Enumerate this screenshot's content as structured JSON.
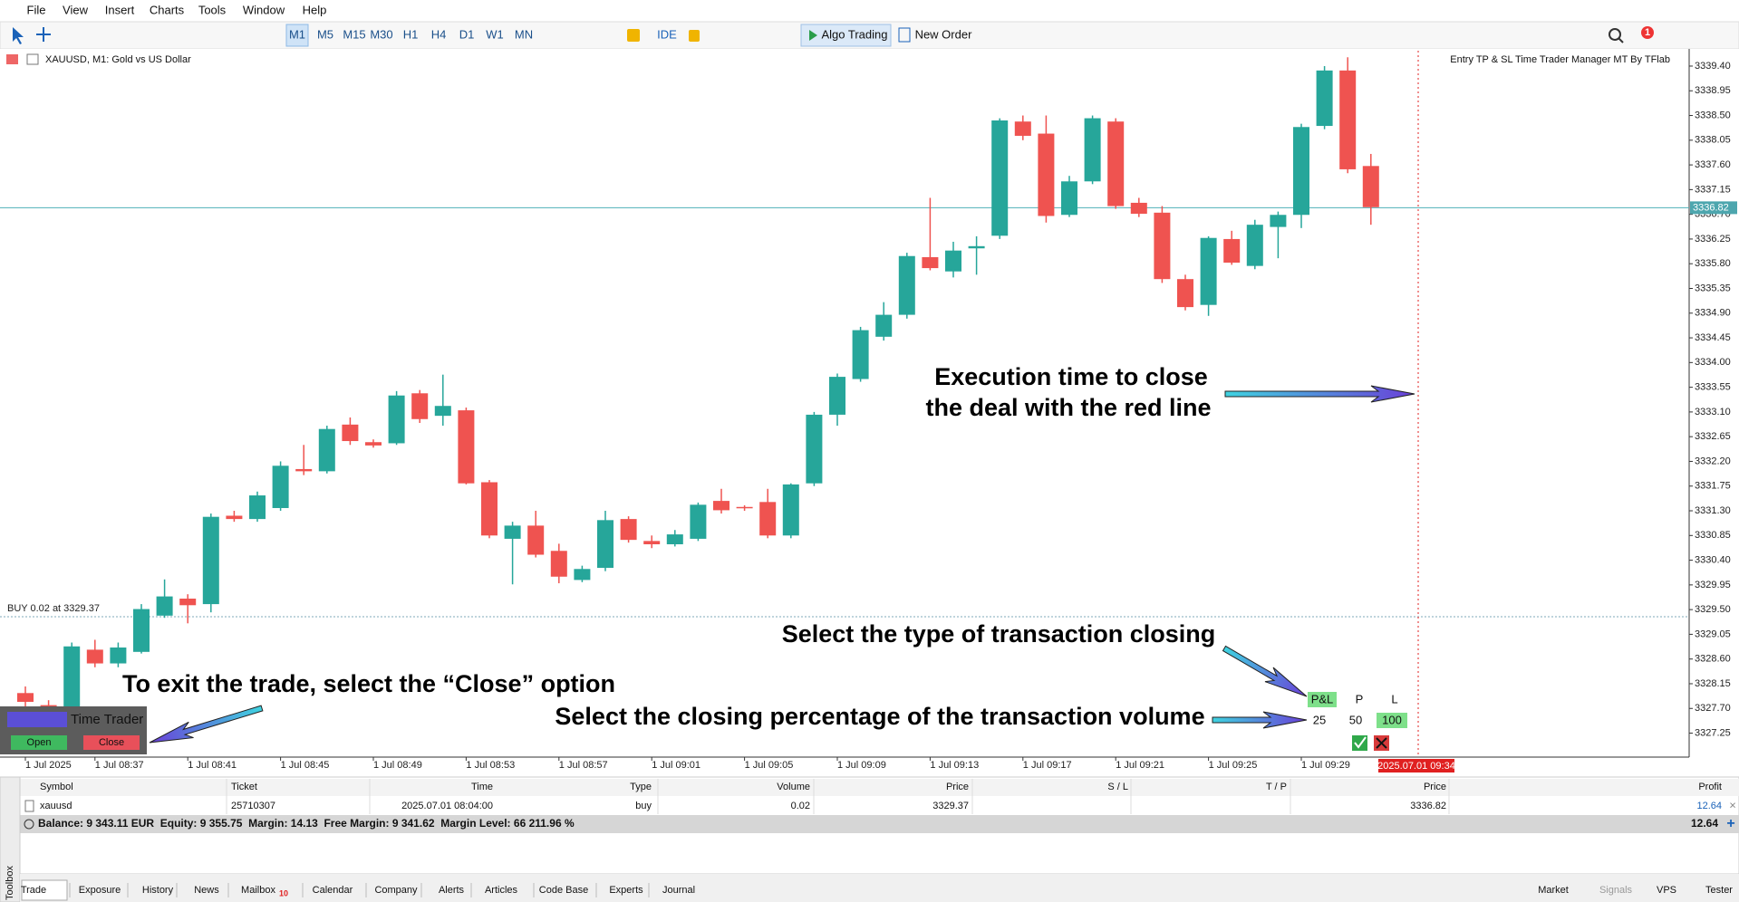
{
  "menu": [
    "File",
    "View",
    "Insert",
    "Charts",
    "Tools",
    "Window",
    "Help"
  ],
  "toolbar": {
    "timeframes": [
      "M1",
      "M5",
      "M15",
      "M30",
      "H1",
      "H4",
      "D1",
      "W1",
      "MN"
    ],
    "ide": "IDE",
    "algo_trading": "Algo Trading",
    "new_order": "New Order"
  },
  "notification_badge": "1",
  "chart_window": {
    "symbol": "XAUUSD, M1:  Gold vs US Dollar",
    "indicator": "Entry TP & SL Time Trader Manager MT By TFlab"
  },
  "chart_data": {
    "type": "candlestick",
    "categories": [
      "1 Jul 2025",
      null,
      null,
      "1 Jul 08:37",
      null,
      null,
      null,
      "1 Jul 08:41",
      null,
      null,
      null,
      "1 Jul 08:45",
      null,
      null,
      null,
      "1 Jul 08:49",
      null,
      null,
      null,
      "1 Jul 08:53",
      null,
      null,
      null,
      "1 Jul 08:57",
      null,
      null,
      null,
      "1 Jul 09:01",
      null,
      null,
      null,
      "1 Jul 09:05",
      null,
      null,
      null,
      "1 Jul 09:09",
      null,
      null,
      null,
      "1 Jul 09:13",
      null,
      null,
      null,
      "1 Jul 09:17",
      null,
      null,
      null,
      "1 Jul 09:21",
      null,
      null,
      null,
      "1 Jul 09:25",
      null,
      null,
      null,
      "1 Jul 09:29",
      null,
      null,
      null
    ],
    "open": [
      3327.98,
      3327.76,
      3327.27,
      3328.77,
      3328.52,
      3328.73,
      3329.39,
      3329.7,
      3329.6,
      3331.21,
      3331.15,
      3331.35,
      3332.06,
      3332.02,
      3332.87,
      3332.55,
      3332.53,
      3333.44,
      3333.03,
      3333.13,
      3331.82,
      3330.79,
      3331.03,
      3330.57,
      3330.04,
      3330.26,
      3331.15,
      3330.75,
      3330.69,
      3330.79,
      3331.48,
      3331.37,
      3331.46,
      3330.85,
      3331.8,
      3333.05,
      3333.7,
      3334.47,
      3334.87,
      3335.92,
      3335.66,
      3336.08,
      3336.31,
      3338.39,
      3338.17,
      3336.69,
      3337.3,
      3338.39,
      3336.91,
      3336.73,
      3335.52,
      3335.05,
      3336.25,
      3335.76,
      3336.47,
      3336.69,
      3338.31,
      3339.32,
      3337.58
    ],
    "high": [
      3328.1,
      3327.85,
      3328.9,
      3328.95,
      3328.9,
      3329.6,
      3330.05,
      3329.78,
      3331.25,
      3331.3,
      3331.65,
      3332.2,
      3332.5,
      3332.85,
      3333.0,
      3332.6,
      3333.48,
      3333.5,
      3333.78,
      3333.18,
      3331.86,
      3331.1,
      3331.3,
      3330.7,
      3330.3,
      3331.3,
      3331.2,
      3330.85,
      3330.95,
      3331.45,
      3331.7,
      3331.4,
      3331.7,
      3331.8,
      3333.1,
      3333.8,
      3334.65,
      3335.1,
      3336.0,
      3337.0,
      3336.2,
      3336.3,
      3338.45,
      3338.5,
      3338.5,
      3337.4,
      3338.5,
      3338.45,
      3337.0,
      3336.85,
      3335.6,
      3336.3,
      3336.4,
      3336.6,
      3336.75,
      3338.35,
      3339.4,
      3339.56,
      3337.8
    ],
    "low": [
      3327.72,
      3327.6,
      3327.2,
      3328.45,
      3328.45,
      3328.7,
      3329.35,
      3329.25,
      3329.45,
      3331.1,
      3331.1,
      3331.3,
      3331.95,
      3331.98,
      3332.5,
      3332.45,
      3332.5,
      3332.9,
      3332.85,
      3331.78,
      3330.8,
      3329.96,
      3330.45,
      3329.98,
      3330.0,
      3330.2,
      3330.72,
      3330.62,
      3330.65,
      3330.75,
      3331.25,
      3331.3,
      3330.8,
      3330.8,
      3331.75,
      3332.85,
      3333.65,
      3334.4,
      3334.8,
      3335.68,
      3335.55,
      3335.6,
      3336.25,
      3338.05,
      3336.55,
      3336.65,
      3337.25,
      3336.8,
      3336.65,
      3335.45,
      3334.95,
      3334.85,
      3335.78,
      3335.7,
      3335.9,
      3336.45,
      3338.25,
      3337.45,
      3336.51
    ],
    "close": [
      3327.82,
      3327.67,
      3328.83,
      3328.52,
      3328.81,
      3329.51,
      3329.74,
      3329.58,
      3331.19,
      3331.15,
      3331.58,
      3332.12,
      3332.02,
      3332.79,
      3332.57,
      3332.49,
      3333.4,
      3332.97,
      3333.21,
      3331.8,
      3330.85,
      3331.03,
      3330.5,
      3330.1,
      3330.24,
      3331.13,
      3330.77,
      3330.69,
      3330.87,
      3331.41,
      3331.31,
      3331.35,
      3330.85,
      3331.78,
      3333.05,
      3333.74,
      3334.59,
      3334.87,
      3335.94,
      3335.72,
      3336.04,
      3336.12,
      3338.41,
      3338.13,
      3336.67,
      3337.3,
      3338.45,
      3336.85,
      3336.71,
      3335.52,
      3335.01,
      3336.27,
      3335.82,
      3336.51,
      3336.69,
      3338.29,
      3339.32,
      3337.52,
      3336.83
    ],
    "up_color": "#26a69a",
    "down_color": "#ef5350",
    "ylim": [
      3326.83,
      3339.68
    ],
    "yticks": [
      {
        "value": 3339.4,
        "label": "3339.40"
      },
      {
        "value": 3338.95,
        "label": "3338.95"
      },
      {
        "value": 3338.5,
        "label": "3338.50"
      },
      {
        "value": 3338.05,
        "label": "3338.05"
      },
      {
        "value": 3337.6,
        "label": "3337.60"
      },
      {
        "value": 3337.15,
        "label": "3337.15"
      },
      {
        "value": 3336.7,
        "label": "3336.70"
      },
      {
        "value": 3336.25,
        "label": "3336.25"
      },
      {
        "value": 3335.8,
        "label": "3335.80"
      },
      {
        "value": 3335.35,
        "label": "3335.35"
      },
      {
        "value": 3334.9,
        "label": "3334.90"
      },
      {
        "value": 3334.45,
        "label": "3334.45"
      },
      {
        "value": 3334,
        "label": "3334.00"
      },
      {
        "value": 3333.55,
        "label": "3333.55"
      },
      {
        "value": 3333.1,
        "label": "3333.10"
      },
      {
        "value": 3332.65,
        "label": "3332.65"
      },
      {
        "value": 3332.2,
        "label": "3332.20"
      },
      {
        "value": 3331.75,
        "label": "3331.75"
      },
      {
        "value": 3331.3,
        "label": "3331.30"
      },
      {
        "value": 3330.85,
        "label": "3330.85"
      },
      {
        "value": 3330.4,
        "label": "3330.40"
      },
      {
        "value": 3329.95,
        "label": "3329.95"
      },
      {
        "value": 3329.5,
        "label": "3329.50"
      },
      {
        "value": 3329.05,
        "label": "3329.05"
      },
      {
        "value": 3328.6,
        "label": "3328.60"
      },
      {
        "value": 3328.15,
        "label": "3328.15"
      },
      {
        "value": 3327.7,
        "label": "3327.70"
      },
      {
        "value": 3327.25,
        "label": "3327.25"
      }
    ],
    "grid": false,
    "current_price": 3336.82,
    "buy_line": {
      "value": 3329.37,
      "label": "BUY 0.02 at 3329.37"
    },
    "close_time": "2025.07.01 09:34"
  },
  "trade_panel": {
    "title": "Time Trader",
    "open": "Open",
    "close": "Close"
  },
  "close_options": {
    "headers": [
      "P&L",
      "P",
      "L"
    ],
    "percentages": [
      "25",
      "50",
      "100"
    ]
  },
  "annotations": [
    "Execution time to close",
    "the deal with the red line",
    "Select the type of transaction closing",
    "Select the closing percentage of the transaction volume",
    "To exit the trade, select the “Close” option"
  ],
  "trade_table": {
    "headers": [
      "Symbol",
      "Ticket",
      "Time",
      "Type",
      "Volume",
      "Price",
      "S / L",
      "T / P",
      "Price",
      "Profit"
    ],
    "rows": [
      [
        "xauusd",
        "25710307",
        "2025.07.01 08:04:00",
        "buy",
        "0.02",
        "3329.37",
        null,
        null,
        "3336.82",
        "12.64"
      ]
    ],
    "summary": "Balance: 9 343.11 EUR  Equity: 9 355.75  Margin: 14.13  Free Margin: 9 341.62  Margin Level: 66 211.96 %",
    "total_profit": "12.64"
  },
  "tabs": [
    "Trade",
    "Exposure",
    "History",
    "News",
    "Mailbox",
    "Calendar",
    "Company",
    "Alerts",
    "Articles",
    "Code Base",
    "Experts",
    "Journal"
  ],
  "mailbox_badge": "10",
  "toolbox": "Toolbox",
  "status": [
    "Market",
    "Signals",
    "VPS",
    "Tester"
  ]
}
